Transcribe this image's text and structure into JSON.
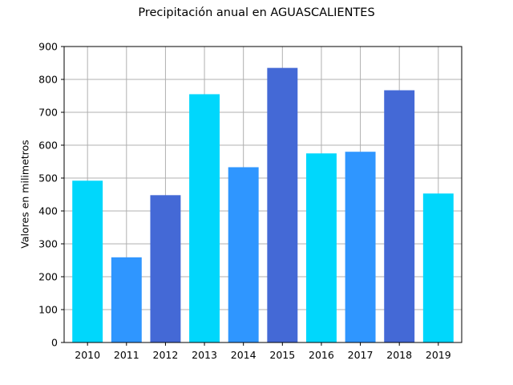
{
  "chart_data": {
    "type": "bar",
    "title": "Precipitación anual en AGUASCALIENTES",
    "xlabel": "",
    "ylabel": "Valores en milimetros",
    "categories": [
      "2010",
      "2011",
      "2012",
      "2013",
      "2014",
      "2015",
      "2016",
      "2017",
      "2018",
      "2019"
    ],
    "values": [
      492,
      259,
      448,
      755,
      533,
      835,
      575,
      580,
      767,
      453
    ],
    "bar_colors": [
      "#00d7fc",
      "#2f96ff",
      "#4469d6",
      "#00d7fc",
      "#2f96ff",
      "#4469d6",
      "#00d7fc",
      "#2f96ff",
      "#4469d6",
      "#00d7fc"
    ],
    "ylim": [
      0,
      900
    ],
    "yticks": [
      0,
      100,
      200,
      300,
      400,
      500,
      600,
      700,
      800,
      900
    ],
    "grid": true,
    "legend": "none"
  }
}
